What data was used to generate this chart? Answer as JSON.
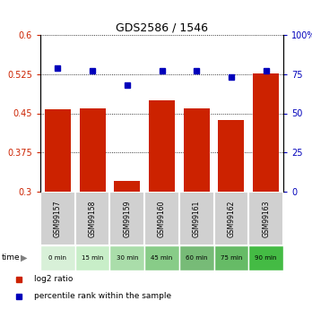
{
  "title": "GDS2586 / 1546",
  "samples": [
    "GSM99157",
    "GSM99158",
    "GSM99159",
    "GSM99160",
    "GSM99161",
    "GSM99162",
    "GSM99163"
  ],
  "time_labels": [
    "0 min",
    "15 min",
    "30 min",
    "45 min",
    "60 min",
    "75 min",
    "90 min"
  ],
  "log2_ratio": [
    0.458,
    0.459,
    0.32,
    0.475,
    0.459,
    0.438,
    0.527
  ],
  "percentile_rank": [
    79,
    77,
    68,
    77,
    77,
    73,
    77
  ],
  "bar_color": "#cc2200",
  "dot_color": "#0000bb",
  "ylim_left": [
    0.3,
    0.6
  ],
  "ylim_right": [
    0,
    100
  ],
  "yticks_left": [
    0.3,
    0.375,
    0.45,
    0.525,
    0.6
  ],
  "ytick_labels_left": [
    "0.3",
    "0.375",
    "0.45",
    "0.525",
    "0.6"
  ],
  "yticks_right": [
    0,
    25,
    50,
    75,
    100
  ],
  "ytick_labels_right": [
    "0",
    "25",
    "50",
    "75",
    "100%"
  ],
  "time_colors": [
    "#d8f0d8",
    "#c8eec8",
    "#aaddaa",
    "#88cc88",
    "#77bb77",
    "#66bb66",
    "#44bb44"
  ],
  "sample_bg_color": "#d0d0d0",
  "bar_bottom": 0.3,
  "bar_width": 0.75
}
